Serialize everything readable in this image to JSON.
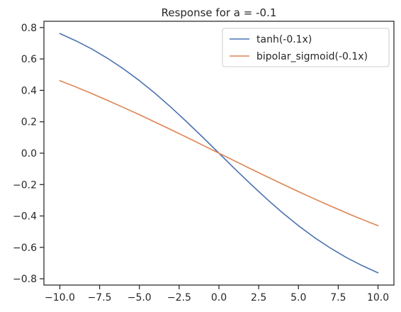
{
  "chart_data": {
    "type": "line",
    "title": "Response for a = -0.1",
    "xlabel": "",
    "ylabel": "",
    "xlim": [
      -11.0,
      11.0
    ],
    "ylim": [
      -0.84,
      0.84
    ],
    "x_ticks": [
      -10.0,
      -7.5,
      -5.0,
      -2.5,
      0.0,
      2.5,
      5.0,
      7.5,
      10.0
    ],
    "x_tick_labels": [
      "−10.0",
      "−7.5",
      "−5.0",
      "−2.5",
      "0.0",
      "2.5",
      "5.0",
      "7.5",
      "10.0"
    ],
    "y_ticks": [
      -0.8,
      -0.6,
      -0.4,
      -0.2,
      0.0,
      0.2,
      0.4,
      0.6,
      0.8
    ],
    "y_tick_labels": [
      "−0.8",
      "−0.6",
      "−0.4",
      "−0.2",
      "0.0",
      "0.2",
      "0.4",
      "0.6",
      "0.8"
    ],
    "grid": false,
    "legend_position": "top-right",
    "x": [
      -10.0,
      -9.0,
      -8.0,
      -7.0,
      -6.0,
      -5.0,
      -4.0,
      -3.0,
      -2.0,
      -1.0,
      0.0,
      1.0,
      2.0,
      3.0,
      4.0,
      5.0,
      6.0,
      7.0,
      8.0,
      9.0,
      10.0
    ],
    "series": [
      {
        "name": "tanh(-0.1x)",
        "color": "#4c72b0",
        "values": [
          0.762,
          0.716,
          0.664,
          0.604,
          0.537,
          0.462,
          0.38,
          0.291,
          0.197,
          0.1,
          0.0,
          -0.1,
          -0.197,
          -0.291,
          -0.38,
          -0.462,
          -0.537,
          -0.604,
          -0.664,
          -0.716,
          -0.762
        ]
      },
      {
        "name": "bipolar_sigmoid(-0.1x)",
        "color": "#dd8452",
        "values": [
          0.462,
          0.422,
          0.38,
          0.336,
          0.291,
          0.245,
          0.197,
          0.149,
          0.1,
          0.05,
          0.0,
          -0.05,
          -0.1,
          -0.149,
          -0.197,
          -0.245,
          -0.291,
          -0.336,
          -0.38,
          -0.422,
          -0.462
        ]
      }
    ]
  }
}
